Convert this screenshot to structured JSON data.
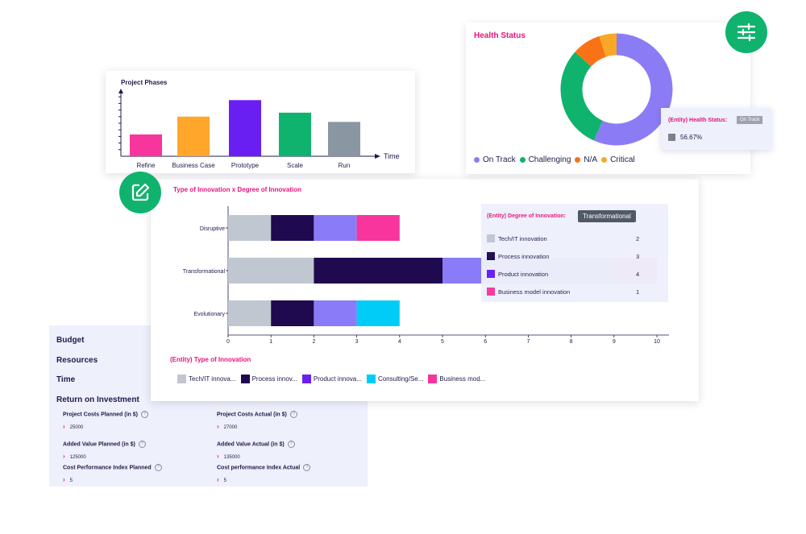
{
  "budget": {
    "rows": [
      "Budget",
      "Resources",
      "Time",
      "Return on Investment"
    ],
    "metrics": [
      {
        "label": "Project Costs Planned (in $)",
        "value": "25000"
      },
      {
        "label": "Project Costs Actual (in $)",
        "value": "27000"
      },
      {
        "label": "Added Value Planned (in $)",
        "value": "125000"
      },
      {
        "label": "Added Value Actual (in $)",
        "value": "135000"
      },
      {
        "label": "Cost Performance Index Planned",
        "value": "5"
      },
      {
        "label": "Cost performance Index Actual",
        "value": "5"
      }
    ],
    "help_icon": "question-circle-icon",
    "chevron_icon": "chevron-right-icon"
  },
  "innovation": {
    "title": "Type of Innovation x Degree of Innovation",
    "type_title": "(Entity) Type of Innovation",
    "legend": [
      {
        "label": "Tech/IT innova...",
        "color": "#c0c7d0"
      },
      {
        "label": "Process innov...",
        "color": "#1f0a4f"
      },
      {
        "label": "Product innova...",
        "color": "#6a1ff2"
      },
      {
        "label": "Consulting/Se...",
        "color": "#00cdf7"
      },
      {
        "label": "Business mod...",
        "color": "#f7359c"
      }
    ],
    "tooltip": {
      "header": "(Entity) Degree of Innovation:",
      "tag": "Transformational",
      "rows": [
        {
          "label": "Tech/IT innovation",
          "count": "2",
          "color": "#c0c7d0"
        },
        {
          "label": "Process innovation",
          "count": "3",
          "color": "#1f0a4f"
        },
        {
          "label": "Product innovation",
          "count": "4",
          "color": "#6a1ff2"
        },
        {
          "label": "Business model innovation",
          "count": "1",
          "color": "#f7359c"
        }
      ]
    }
  },
  "phases": {
    "title": "Project Phases",
    "time_label": "Time"
  },
  "health": {
    "title": "Health Status",
    "legend": [
      {
        "label": "On Track",
        "color": "#8b7cf6"
      },
      {
        "label": "Challenging",
        "color": "#10b36e"
      },
      {
        "label": "N/A",
        "color": "#f97316"
      },
      {
        "label": "Critical",
        "color": "#f9a825"
      }
    ],
    "tooltip": {
      "header": "(Entity) Health Status:",
      "tag": "On Track",
      "value": "56.67%"
    },
    "filter_icon": "sliders-icon"
  },
  "edit_icon": "edit-icon",
  "chart_data": [
    {
      "type": "bar",
      "title": "Project Phases",
      "xlabel": "Time",
      "ylabel": "",
      "categories": [
        "Refine",
        "Business Case",
        "Prototype",
        "Scale",
        "Run"
      ],
      "values": [
        3.3,
        6.0,
        8.5,
        6.6,
        5.2
      ],
      "colors": [
        "#f7359c",
        "#ffa62b",
        "#6a1ff2",
        "#10b36e",
        "#8a97a3"
      ],
      "ylim": [
        0,
        10
      ],
      "grid": false
    },
    {
      "type": "bar",
      "orientation": "horizontal",
      "stacked": true,
      "title": "Type of Innovation x Degree of Innovation",
      "categories": [
        "Disruptive",
        "Transformational",
        "Evolutionary"
      ],
      "series": [
        {
          "name": "Tech/IT innova...",
          "color": "#c0c7d0",
          "values": [
            1,
            2,
            1
          ]
        },
        {
          "name": "Process innov...",
          "color": "#1f0a4f",
          "values": [
            1,
            3,
            1
          ]
        },
        {
          "name": "Product innova...",
          "color": "#8a7cf8",
          "values": [
            1,
            4,
            1
          ]
        },
        {
          "name": "Consulting/Se...",
          "color": "#00cdf7",
          "values": [
            0,
            0,
            1
          ]
        },
        {
          "name": "Business mod...",
          "color": "#f7359c",
          "values": [
            1,
            1,
            0
          ]
        }
      ],
      "xlim": [
        0,
        10
      ],
      "xticks": [
        0,
        1,
        2,
        3,
        4,
        5,
        6,
        7,
        8,
        9,
        10
      ],
      "legend": "bottom-left",
      "grid": false
    },
    {
      "type": "pie",
      "donut": true,
      "title": "Health Status",
      "categories": [
        "On Track",
        "Challenging",
        "N/A",
        "Critical"
      ],
      "values": [
        56.67,
        30,
        8.33,
        5
      ],
      "colors": [
        "#8b7cf6",
        "#10b36e",
        "#f97316",
        "#f9a825"
      ],
      "legend": "bottom"
    }
  ]
}
